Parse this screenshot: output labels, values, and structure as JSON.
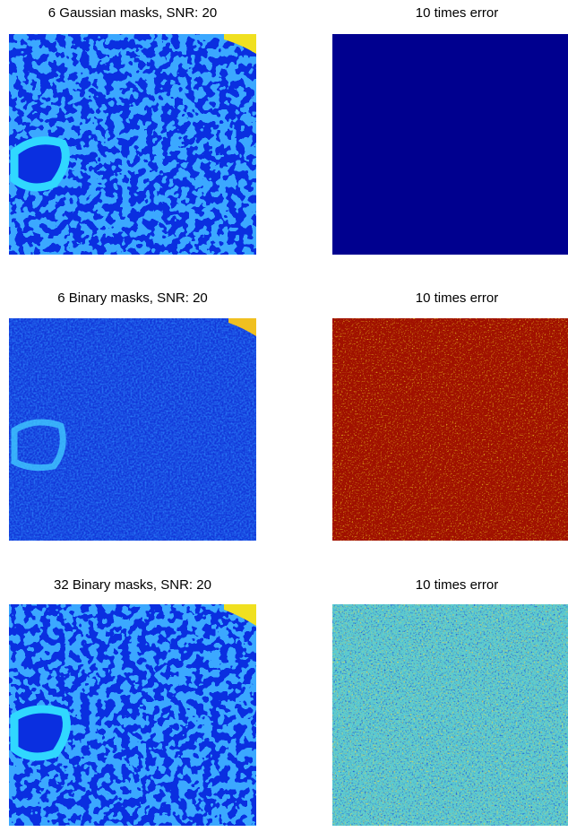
{
  "panels": [
    {
      "title": "6 Gaussian masks, SNR: 20"
    },
    {
      "title": "10 times error"
    },
    {
      "title": "6 Binary masks, SNR: 20"
    },
    {
      "title": "10 times error"
    },
    {
      "title": "32 Binary masks, SNR: 20"
    },
    {
      "title": "10 times error"
    }
  ]
}
